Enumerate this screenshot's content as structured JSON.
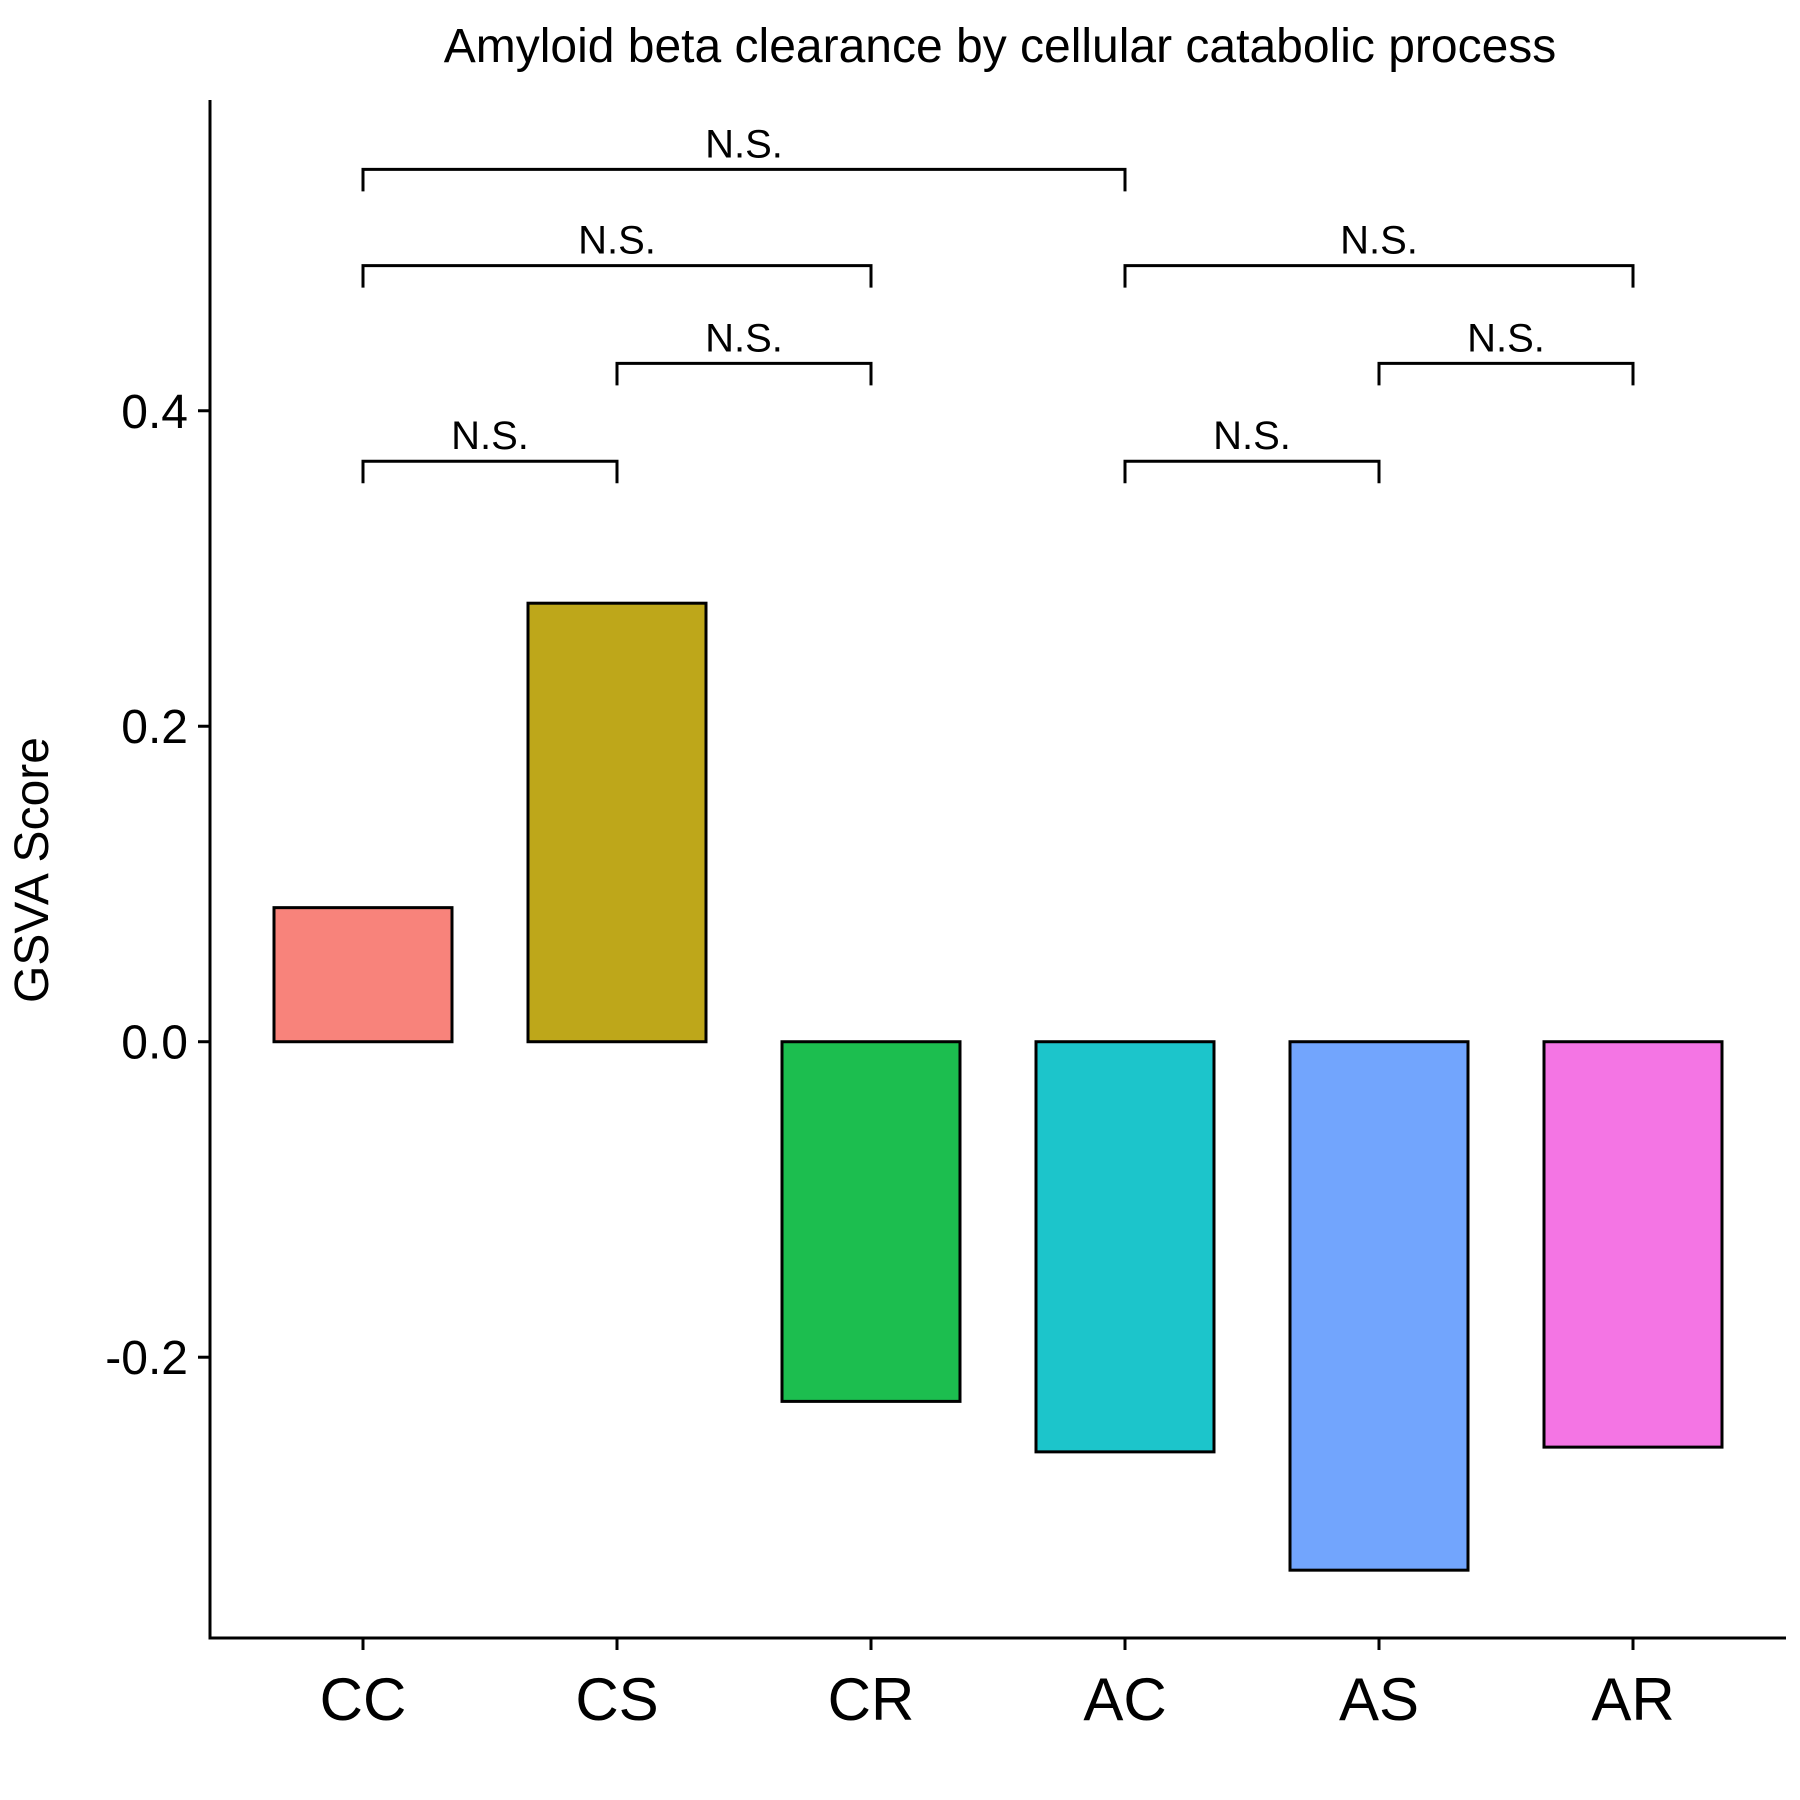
{
  "chart_data": {
    "type": "bar",
    "title": "Amyloid beta clearance by cellular catabolic process",
    "xlabel": "",
    "ylabel": "GSVA Score",
    "categories": [
      "CC",
      "CS",
      "CR",
      "AC",
      "AS",
      "AR"
    ],
    "values": [
      0.085,
      0.278,
      -0.228,
      -0.26,
      -0.335,
      -0.257
    ],
    "colors": [
      "#F8837B",
      "#BEA71A",
      "#1CBE4F",
      "#1CC5CB",
      "#72A5FD",
      "#F475E4"
    ],
    "yticks": [
      -0.2,
      0.0,
      0.2,
      0.4
    ],
    "ytick_labels": [
      "-0.2",
      "0.0",
      "0.2",
      "0.4"
    ],
    "ylim": [
      -0.378,
      0.597
    ],
    "grid": false,
    "legend": "none",
    "comparisons": [
      {
        "groups": [
          "CC",
          "CS"
        ],
        "label": "N.S.",
        "y": 0.368
      },
      {
        "groups": [
          "CS",
          "CR"
        ],
        "label": "N.S.",
        "y": 0.43
      },
      {
        "groups": [
          "CC",
          "CR"
        ],
        "label": "N.S.",
        "y": 0.492
      },
      {
        "groups": [
          "CC",
          "AC"
        ],
        "label": "N.S.",
        "y": 0.553
      },
      {
        "groups": [
          "AC",
          "AS"
        ],
        "label": "N.S.",
        "y": 0.368
      },
      {
        "groups": [
          "AS",
          "AR"
        ],
        "label": "N.S.",
        "y": 0.43
      },
      {
        "groups": [
          "AC",
          "AR"
        ],
        "label": "N.S.",
        "y": 0.492
      }
    ]
  }
}
